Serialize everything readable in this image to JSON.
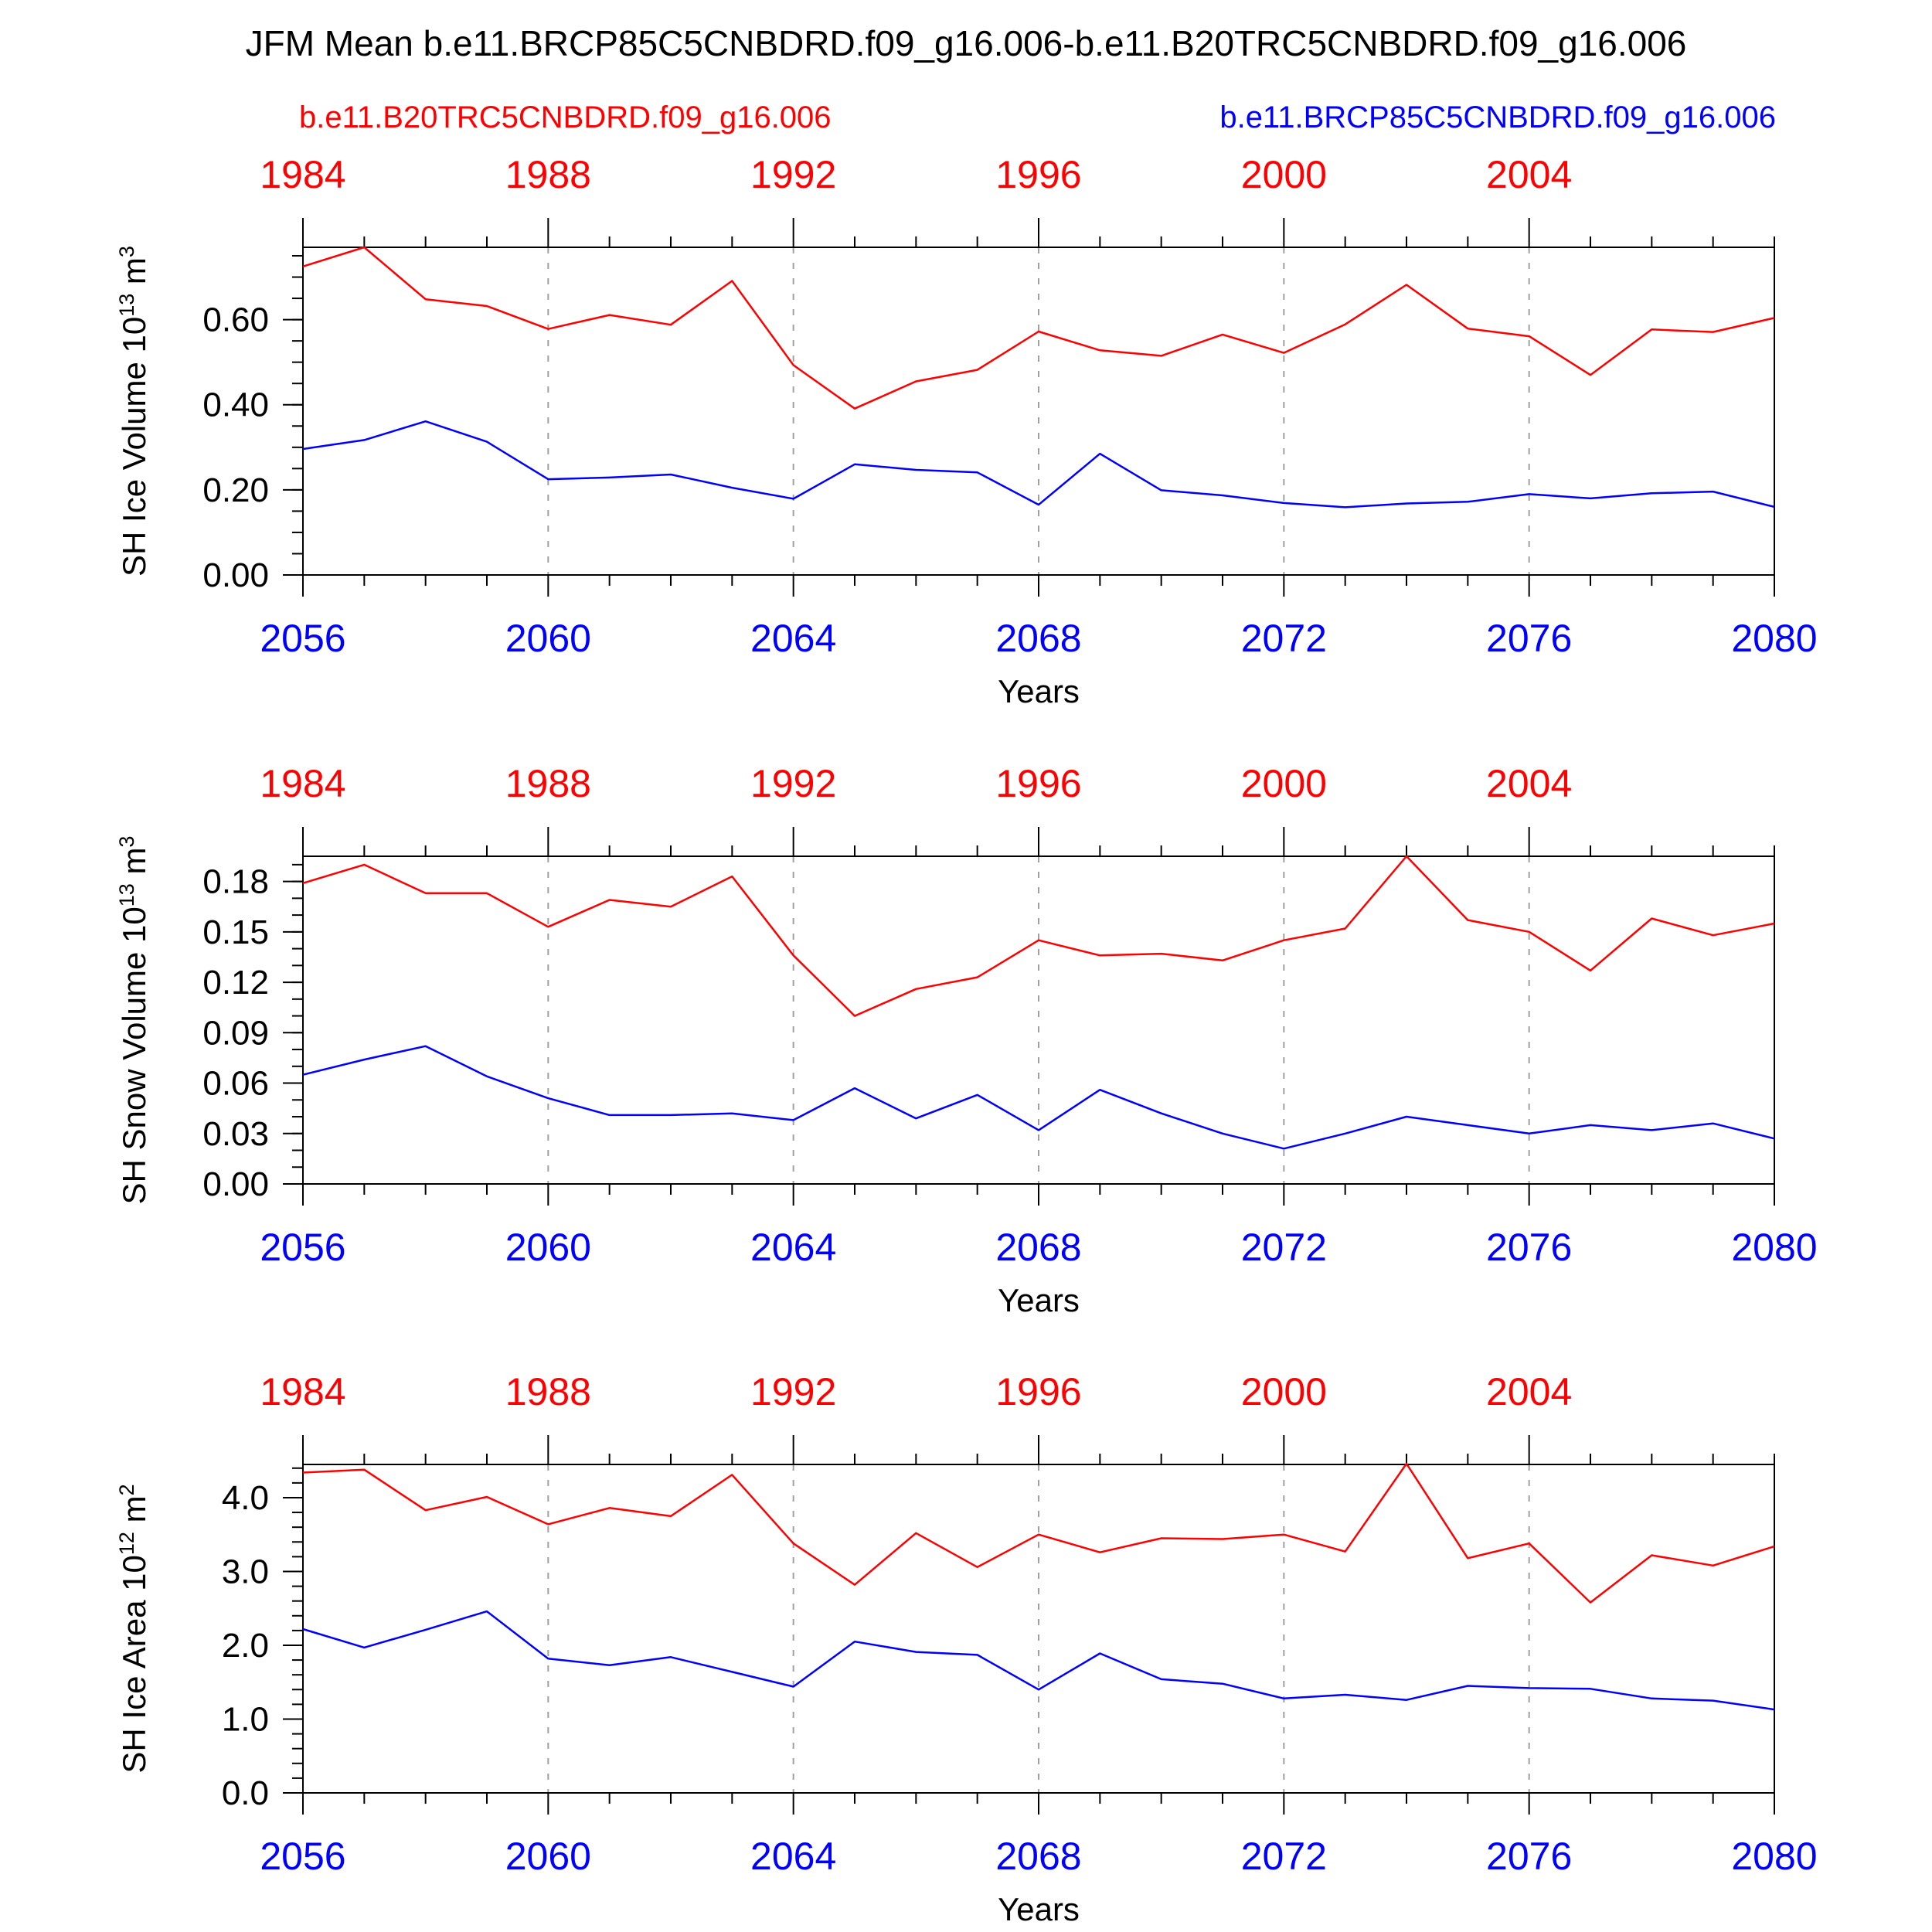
{
  "title": "JFM Mean b.e11.BRCP85C5CNBDRD.f09_g16.006-b.e11.B20TRC5CNBDRD.f09_g16.006",
  "legend": {
    "left": "b.e11.B20TRC5CNBDRD.f09_g16.006",
    "right": "b.e11.BRCP85C5CNBDRD.f09_g16.006"
  },
  "colors": {
    "historical": "#ff0000",
    "future": "#0000ff",
    "axis": "#000000",
    "grid": "#a0a0a0"
  },
  "chart_data": [
    {
      "type": "line",
      "ylabel": "SH Ice Volume 10",
      "ylabel_sup": "13",
      "ylabel_unit": "m",
      "ylabel_unit_sup": "3",
      "xlabel": "Years",
      "ylim": [
        0,
        0.77
      ],
      "yticks": [
        "0.00",
        "0.20",
        "0.40",
        "0.60"
      ],
      "ytick_values": [
        0,
        0.2,
        0.4,
        0.6
      ],
      "yminor": 0.05,
      "x_bottom_ticks": [
        "2056",
        "2060",
        "2064",
        "2068",
        "2072",
        "2076",
        "2080"
      ],
      "x_top_ticks": [
        "1984",
        "1988",
        "1992",
        "1996",
        "2000",
        "2004"
      ],
      "xlim": [
        2056,
        2080
      ],
      "x": [
        2056,
        2057,
        2058,
        2059,
        2060,
        2061,
        2062,
        2063,
        2064,
        2065,
        2066,
        2067,
        2068,
        2069,
        2070,
        2071,
        2072,
        2073,
        2074,
        2075,
        2076,
        2077,
        2078,
        2079,
        2080
      ],
      "series": [
        {
          "name": "b.e11.B20TRC5CNBDRD.f09_g16.006",
          "color": "#ff0000",
          "values": [
            0.725,
            0.77,
            0.648,
            0.632,
            0.578,
            0.611,
            0.588,
            0.691,
            0.493,
            0.391,
            0.455,
            0.482,
            0.572,
            0.528,
            0.515,
            0.565,
            0.522,
            0.589,
            0.682,
            0.579,
            0.561,
            0.47,
            0.577,
            0.571,
            0.604
          ]
        },
        {
          "name": "b.e11.BRCP85C5CNBDRD.f09_g16.006",
          "color": "#0000ff",
          "values": [
            0.296,
            0.317,
            0.361,
            0.313,
            0.225,
            0.229,
            0.236,
            0.205,
            0.179,
            0.26,
            0.247,
            0.241,
            0.165,
            0.285,
            0.199,
            0.187,
            0.169,
            0.159,
            0.168,
            0.172,
            0.19,
            0.18,
            0.192,
            0.196,
            0.16
          ]
        }
      ]
    },
    {
      "type": "line",
      "ylabel": "SH Snow Volume 10",
      "ylabel_sup": "13",
      "ylabel_unit": "m",
      "ylabel_unit_sup": "3",
      "xlabel": "Years",
      "ylim": [
        0,
        0.195
      ],
      "yticks": [
        "0.00",
        "0.03",
        "0.06",
        "0.09",
        "0.12",
        "0.15",
        "0.18"
      ],
      "ytick_values": [
        0,
        0.03,
        0.06,
        0.09,
        0.12,
        0.15,
        0.18
      ],
      "yminor": 0.01,
      "x_bottom_ticks": [
        "2056",
        "2060",
        "2064",
        "2068",
        "2072",
        "2076",
        "2080"
      ],
      "x_top_ticks": [
        "1984",
        "1988",
        "1992",
        "1996",
        "2000",
        "2004"
      ],
      "xlim": [
        2056,
        2080
      ],
      "x": [
        2056,
        2057,
        2058,
        2059,
        2060,
        2061,
        2062,
        2063,
        2064,
        2065,
        2066,
        2067,
        2068,
        2069,
        2070,
        2071,
        2072,
        2073,
        2074,
        2075,
        2076,
        2077,
        2078,
        2079,
        2080
      ],
      "series": [
        {
          "name": "b.e11.B20TRC5CNBDRD.f09_g16.006",
          "color": "#ff0000",
          "values": [
            0.179,
            0.19,
            0.173,
            0.173,
            0.153,
            0.169,
            0.165,
            0.183,
            0.136,
            0.1,
            0.116,
            0.123,
            0.145,
            0.136,
            0.137,
            0.133,
            0.145,
            0.152,
            0.195,
            0.157,
            0.15,
            0.127,
            0.158,
            0.148,
            0.155
          ]
        },
        {
          "name": "b.e11.BRCP85C5CNBDRD.f09_g16.006",
          "color": "#0000ff",
          "values": [
            0.065,
            0.074,
            0.082,
            0.064,
            0.051,
            0.041,
            0.041,
            0.042,
            0.038,
            0.057,
            0.039,
            0.053,
            0.032,
            0.056,
            0.042,
            0.03,
            0.021,
            0.03,
            0.04,
            0.035,
            0.03,
            0.035,
            0.032,
            0.036,
            0.027
          ]
        }
      ]
    },
    {
      "type": "line",
      "ylabel": "SH Ice Area 10",
      "ylabel_sup": "12",
      "ylabel_unit": "m",
      "ylabel_unit_sup": "2",
      "xlabel": "Years",
      "ylim": [
        0,
        4.45
      ],
      "yticks": [
        "0.0",
        "1.0",
        "2.0",
        "3.0",
        "4.0"
      ],
      "ytick_values": [
        0,
        1,
        2,
        3,
        4
      ],
      "yminor": 0.2,
      "x_bottom_ticks": [
        "2056",
        "2060",
        "2064",
        "2068",
        "2072",
        "2076",
        "2080"
      ],
      "x_top_ticks": [
        "1984",
        "1988",
        "1992",
        "1996",
        "2000",
        "2004"
      ],
      "xlim": [
        2056,
        2080
      ],
      "x": [
        2056,
        2057,
        2058,
        2059,
        2060,
        2061,
        2062,
        2063,
        2064,
        2065,
        2066,
        2067,
        2068,
        2069,
        2070,
        2071,
        2072,
        2073,
        2074,
        2075,
        2076,
        2077,
        2078,
        2079,
        2080
      ],
      "series": [
        {
          "name": "b.e11.B20TRC5CNBDRD.f09_g16.006",
          "color": "#ff0000",
          "values": [
            4.34,
            4.38,
            3.83,
            4.01,
            3.64,
            3.86,
            3.75,
            4.31,
            3.38,
            2.82,
            3.52,
            3.06,
            3.5,
            3.26,
            3.45,
            3.44,
            3.5,
            3.27,
            4.46,
            3.18,
            3.38,
            2.58,
            3.22,
            3.08,
            3.34
          ]
        },
        {
          "name": "b.e11.BRCP85C5CNBDRD.f09_g16.006",
          "color": "#0000ff",
          "values": [
            2.22,
            1.97,
            2.21,
            2.46,
            1.82,
            1.73,
            1.84,
            1.64,
            1.44,
            2.05,
            1.91,
            1.87,
            1.4,
            1.89,
            1.54,
            1.48,
            1.28,
            1.33,
            1.26,
            1.45,
            1.42,
            1.41,
            1.28,
            1.25,
            1.13
          ]
        }
      ]
    }
  ]
}
